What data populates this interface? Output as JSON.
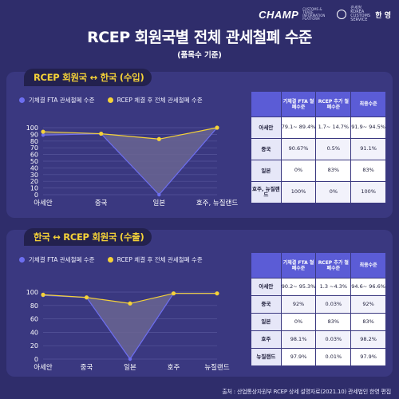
{
  "header": {
    "logo_text": "CHAMP",
    "logo_subtext": "CUSTOMS & TRADE INFORMATION PLATFORM",
    "customs_text": "관세청 KOREA CUSTOMS SERVICE",
    "org_text": "한 영",
    "title": "RCEP 회원국별 전체 관세철폐 수준",
    "subtitle": "(품목수 기준)"
  },
  "colors": {
    "background": "#2f2d6b",
    "panel": "#3a3880",
    "accent_yellow": "#f5d238",
    "series_blue": "#6d6ef0",
    "table_header": "#5b5cd6"
  },
  "chart_data": [
    {
      "type": "line",
      "title": "RCEP 회원국 ↔ 한국 (수입)",
      "categories": [
        "아세안",
        "중국",
        "일본",
        "호주, 뉴질랜드"
      ],
      "series": [
        {
          "name": "기체결 FTA 관세철폐 수준",
          "values": [
            89,
            91,
            0,
            100
          ],
          "color": "#6d6ef0"
        },
        {
          "name": "RCEP 체결 후 전체 관세철폐 수준",
          "values": [
            94,
            91,
            83,
            100
          ],
          "color": "#f5d238"
        }
      ],
      "ylim": [
        0,
        100
      ],
      "yticks": [
        0,
        10,
        20,
        30,
        40,
        50,
        60,
        70,
        80,
        90,
        100
      ],
      "grid": true,
      "legend": "top"
    },
    {
      "type": "line",
      "title": "한국 ↔ RCEP 회원국 (수출)",
      "categories": [
        "아세안",
        "중국",
        "일본",
        "호주",
        "뉴질랜드"
      ],
      "series": [
        {
          "name": "기체결 FTA 관세철폐 수준",
          "values": [
            95,
            92,
            0,
            98,
            98
          ],
          "color": "#6d6ef0"
        },
        {
          "name": "RCEP 체결 후 전체 관세철폐 수준",
          "values": [
            96,
            92,
            83,
            98,
            98
          ],
          "color": "#f5d238"
        }
      ],
      "ylim": [
        0,
        100
      ],
      "yticks": [
        0,
        20,
        40,
        60,
        80,
        100
      ],
      "grid": true,
      "legend": "top"
    }
  ],
  "tables": [
    {
      "headers": [
        "",
        "기체결 FTA 철폐수준",
        "RCEP 추가 철폐수준",
        "최종수준"
      ],
      "rows": [
        {
          "label": "아세안",
          "cells": [
            "79.1~ 89.4%",
            "1.7~ 14.7%",
            "91.9~ 94.5%"
          ]
        },
        {
          "label": "중국",
          "cells": [
            "90.67%",
            "0.5%",
            "91.1%"
          ]
        },
        {
          "label": "일본",
          "cells": [
            "0%",
            "83%",
            "83%"
          ]
        },
        {
          "label": "호주, 뉴질랜드",
          "cells": [
            "100%",
            "0%",
            "100%"
          ]
        }
      ]
    },
    {
      "headers": [
        "",
        "기체결 FTA 철폐수준",
        "RCEP 추가 철폐수준",
        "최종수준"
      ],
      "rows": [
        {
          "label": "아세안",
          "cells": [
            "90.2~ 95.3%",
            "1.3 ~4.3%",
            "94.6~ 96.6%"
          ]
        },
        {
          "label": "중국",
          "cells": [
            "92%",
            "0.03%",
            "92%"
          ]
        },
        {
          "label": "일본",
          "cells": [
            "0%",
            "83%",
            "83%"
          ]
        },
        {
          "label": "호주",
          "cells": [
            "98.1%",
            "0.03%",
            "98.2%"
          ]
        },
        {
          "label": "뉴질랜드",
          "cells": [
            "97.9%",
            "0.01%",
            "97.9%"
          ]
        }
      ]
    }
  ],
  "source": "출처 : 산업통상자원부 RCEP 상세 설명자료(2021.10) 관세법인 한영 편집"
}
